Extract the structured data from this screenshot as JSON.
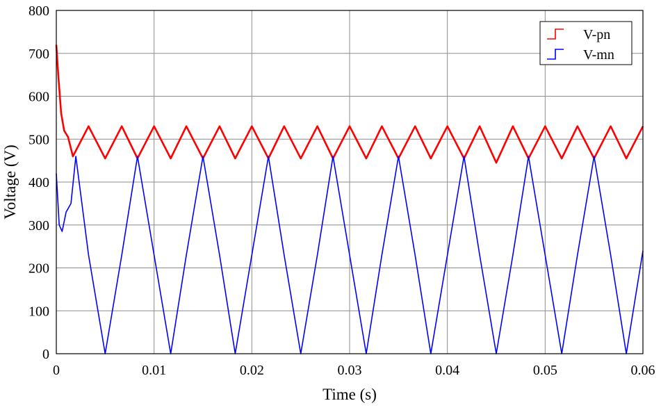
{
  "chart_data": {
    "type": "line",
    "xlabel": "Time (s)",
    "ylabel": "Voltage (V)",
    "xlim": [
      0,
      0.06
    ],
    "ylim": [
      0,
      800
    ],
    "x_ticks": [
      0,
      0.01,
      0.02,
      0.03,
      0.04,
      0.05,
      0.06
    ],
    "x_tick_labels": [
      "0",
      "0.01",
      "0.02",
      "0.03",
      "0.04",
      "0.05",
      "0.06"
    ],
    "y_ticks": [
      0,
      100,
      200,
      300,
      400,
      500,
      600,
      700,
      800
    ],
    "y_tick_labels": [
      "0",
      "100",
      "200",
      "300",
      "400",
      "500",
      "600",
      "700",
      "800"
    ],
    "grid": true,
    "legend_position": "top-right",
    "series": [
      {
        "name": "V-pn",
        "color": "#ff0000",
        "x": [
          0,
          0.0002,
          0.0005,
          0.0008,
          0.0012,
          0.0017,
          0.0033,
          0.005,
          0.0067,
          0.0083,
          0.01,
          0.0117,
          0.0133,
          0.015,
          0.0167,
          0.0183,
          0.02,
          0.0217,
          0.0233,
          0.025,
          0.0267,
          0.0283,
          0.03,
          0.0317,
          0.0333,
          0.035,
          0.0367,
          0.0383,
          0.04,
          0.0417,
          0.0433,
          0.045,
          0.0467,
          0.0483,
          0.05,
          0.0517,
          0.0533,
          0.055,
          0.0567,
          0.0583,
          0.06
        ],
        "y": [
          720,
          650,
          560,
          520,
          505,
          460,
          530,
          455,
          530,
          455,
          530,
          455,
          530,
          455,
          530,
          455,
          530,
          455,
          530,
          455,
          530,
          455,
          530,
          455,
          530,
          455,
          530,
          455,
          530,
          455,
          530,
          445,
          530,
          455,
          530,
          455,
          530,
          455,
          530,
          455,
          530
        ]
      },
      {
        "name": "V-mn",
        "color": "#0000ff",
        "x": [
          0,
          0.0003,
          0.0006,
          0.001,
          0.0015,
          0.002,
          0.0033,
          0.005,
          0.0067,
          0.0083,
          0.01,
          0.0117,
          0.0133,
          0.015,
          0.0167,
          0.0183,
          0.02,
          0.0217,
          0.0233,
          0.025,
          0.0267,
          0.0283,
          0.03,
          0.0317,
          0.0333,
          0.035,
          0.0367,
          0.0383,
          0.04,
          0.0417,
          0.0433,
          0.045,
          0.0467,
          0.0483,
          0.05,
          0.0517,
          0.0533,
          0.055,
          0.0567,
          0.0583,
          0.06
        ],
        "y": [
          420,
          300,
          285,
          330,
          350,
          460,
          230,
          0,
          230,
          460,
          230,
          0,
          230,
          460,
          230,
          0,
          230,
          460,
          230,
          0,
          230,
          460,
          230,
          0,
          230,
          460,
          230,
          0,
          230,
          460,
          230,
          0,
          230,
          460,
          230,
          0,
          230,
          460,
          230,
          0,
          240
        ]
      }
    ]
  }
}
